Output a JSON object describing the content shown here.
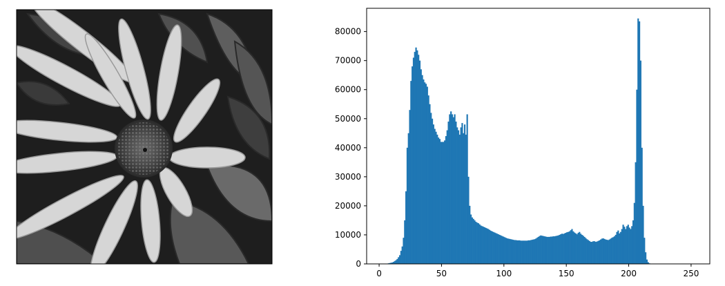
{
  "chart_data": [
    {
      "type": "image",
      "image": {
        "description_icon": "grayscale-daisy-flower-photo",
        "colors": {
          "dark": "#1e1e1e",
          "petal": "#d6d6d6",
          "leaf": "#5a5a5a"
        }
      }
    },
    {
      "type": "bar",
      "title": "",
      "xlabel": "",
      "ylabel": "",
      "xlim": [
        -10,
        265
      ],
      "ylim": [
        0,
        88000
      ],
      "grid": false,
      "bar_color": "#1f77b4",
      "xticks": [
        0,
        50,
        100,
        150,
        200,
        250
      ],
      "yticks": [
        0,
        10000,
        20000,
        30000,
        40000,
        50000,
        60000,
        70000,
        80000
      ],
      "bins_start": 0,
      "bin_width": 1,
      "values": [
        0,
        0,
        0,
        0,
        0,
        0,
        100,
        200,
        300,
        400,
        500,
        700,
        1000,
        1300,
        1700,
        2300,
        3000,
        4500,
        6000,
        9000,
        15000,
        25000,
        40000,
        45000,
        53000,
        63000,
        68000,
        71000,
        73000,
        74500,
        73500,
        72000,
        70000,
        67000,
        65000,
        63500,
        62500,
        62000,
        61000,
        58000,
        55000,
        52000,
        50000,
        48000,
        46500,
        45500,
        44500,
        43500,
        43000,
        42000,
        42000,
        42000,
        42500,
        44000,
        46000,
        49000,
        51500,
        52500,
        51500,
        50500,
        51500,
        49000,
        47000,
        46000,
        44500,
        47000,
        48500,
        45000,
        48000,
        44500,
        51500,
        30000,
        20000,
        17000,
        16000,
        15500,
        15000,
        14500,
        14200,
        14000,
        13600,
        13200,
        13000,
        12800,
        12600,
        12400,
        12200,
        12000,
        11700,
        11400,
        11200,
        11000,
        10800,
        10600,
        10400,
        10200,
        10000,
        9800,
        9600,
        9400,
        9200,
        9000,
        8800,
        8700,
        8600,
        8500,
        8400,
        8300,
        8200,
        8200,
        8100,
        8100,
        8100,
        8000,
        8000,
        8000,
        8000,
        8000,
        8000,
        8100,
        8100,
        8200,
        8300,
        8400,
        8500,
        8700,
        9000,
        9300,
        9600,
        9800,
        9700,
        9600,
        9500,
        9400,
        9300,
        9300,
        9300,
        9400,
        9400,
        9500,
        9500,
        9600,
        9700,
        9800,
        10000,
        10200,
        10400,
        10300,
        10500,
        10700,
        10900,
        11000,
        11200,
        11600,
        12000,
        11200,
        10800,
        10500,
        10200,
        10700,
        11000,
        10400,
        10000,
        9700,
        9300,
        8900,
        8500,
        8200,
        7900,
        7600,
        7600,
        7800,
        7800,
        7600,
        7700,
        7900,
        8100,
        8400,
        8700,
        8800,
        8600,
        8400,
        8300,
        8200,
        8400,
        8700,
        9000,
        9200,
        9500,
        10000,
        11000,
        11500,
        10500,
        11000,
        12000,
        13500,
        12800,
        12000,
        13000,
        13500,
        12500,
        12000,
        13000,
        15000,
        21000,
        35000,
        60000,
        84500,
        83500,
        70000,
        40000,
        20000,
        9000,
        4000,
        1500,
        600,
        200,
        100,
        0,
        0,
        0,
        0,
        0,
        0,
        0,
        0,
        0,
        0,
        0,
        0,
        0,
        0,
        0,
        0,
        0,
        0,
        0,
        0,
        0,
        0,
        0,
        0,
        0,
        0,
        0,
        0,
        0,
        0,
        0,
        0,
        0,
        0,
        0,
        0,
        0,
        0,
        0,
        0,
        0,
        0,
        0,
        0,
        0
      ]
    }
  ]
}
